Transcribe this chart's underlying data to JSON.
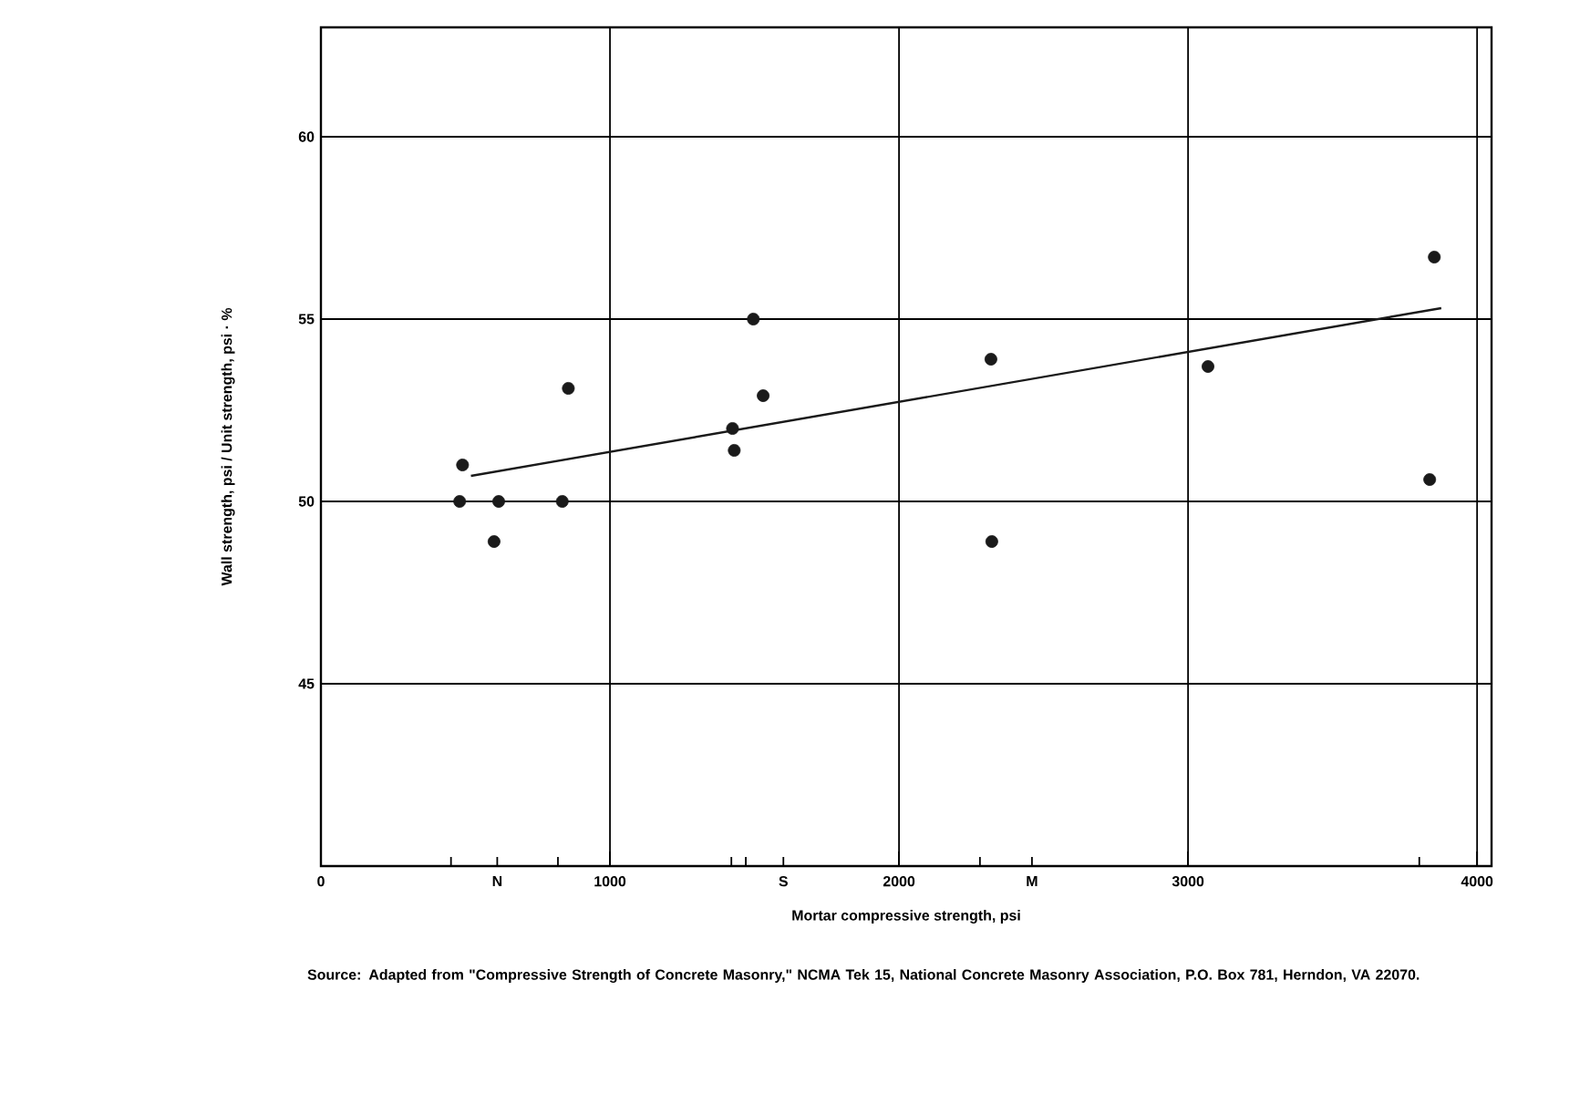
{
  "chart_data": {
    "type": "scatter",
    "xlabel": "Mortar compressive strength, psi",
    "ylabel": "Wall strength, psi / Unit strength, psi · %",
    "annotations": [
      "Source: Adapted from \"Compressive Strength of Concrete Masonry,\" NCMA Tek 15, National Concrete Masonry Association, P.O. Box 781, Herndon, VA 22070."
    ],
    "xlim": [
      0,
      4050
    ],
    "ylim": [
      40,
      63
    ],
    "xticks": [
      0,
      {
        "value": 450,
        "label": null
      },
      {
        "value": 610,
        "label": "N"
      },
      {
        "value": 820,
        "label": null
      },
      1000,
      {
        "value": 1420,
        "label": null
      },
      {
        "value": 1470,
        "label": null
      },
      {
        "value": 1600,
        "label": "S"
      },
      2000,
      {
        "value": 2280,
        "label": null
      },
      {
        "value": 2460,
        "label": "M"
      },
      3000,
      {
        "value": 3800,
        "label": null
      },
      4000
    ],
    "yticks": [
      45,
      50,
      55,
      60
    ],
    "grid": true,
    "marker": "circle",
    "series": [
      {
        "color": "#1a1a1a",
        "x": [
          490,
          480,
          615,
          599,
          835,
          856,
          1424,
          1430,
          1496,
          1530,
          2318,
          2321,
          3069,
          3852,
          3836
        ],
        "values": [
          51.0,
          50.0,
          50.0,
          48.9,
          50.0,
          53.1,
          52.0,
          51.4,
          55.0,
          52.9,
          53.9,
          48.9,
          53.7,
          56.7,
          50.6
        ]
      },
      {
        "type": "line",
        "color": "#1a1a1a",
        "line_style": "solid",
        "marker": "none",
        "x": [
          519,
          3876
        ],
        "values": [
          50.7,
          55.3
        ]
      }
    ]
  }
}
